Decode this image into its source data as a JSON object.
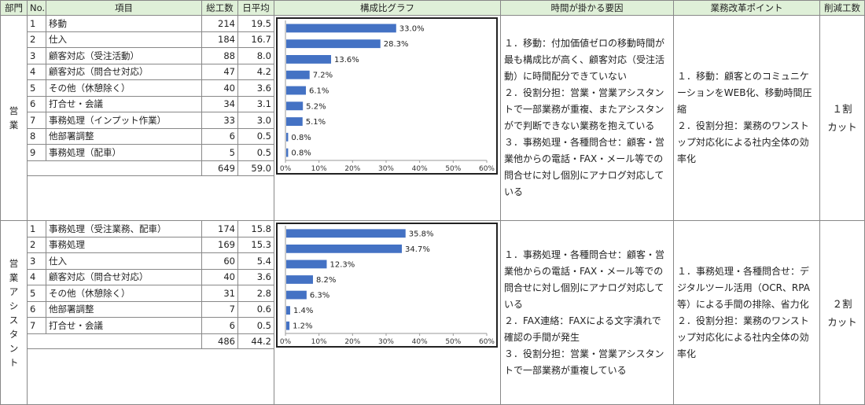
{
  "header": {
    "dept": "部門",
    "no": "No.",
    "item": "項目",
    "total": "総工数",
    "daily": "日平均",
    "graph": "構成比グラフ",
    "causes": "時間が掛かる要因",
    "improve": "業務改革ポイント",
    "cut": "削減工数"
  },
  "sections": [
    {
      "dept_chars": [
        "営",
        "業"
      ],
      "rows": [
        {
          "no": "1",
          "item": "移動",
          "total": "214",
          "daily": "19.5",
          "pct": 33.0,
          "pct_label": "33.0%"
        },
        {
          "no": "2",
          "item": "仕入",
          "total": "184",
          "daily": "16.7",
          "pct": 28.3,
          "pct_label": "28.3%"
        },
        {
          "no": "3",
          "item": "顧客対応（受注活動）",
          "total": "88",
          "daily": "8.0",
          "pct": 13.6,
          "pct_label": "13.6%"
        },
        {
          "no": "4",
          "item": "顧客対応（問合せ対応）",
          "total": "47",
          "daily": "4.2",
          "pct": 7.2,
          "pct_label": "7.2%"
        },
        {
          "no": "5",
          "item": "その他（休憩除く）",
          "total": "40",
          "daily": "3.6",
          "pct": 6.1,
          "pct_label": "6.1%"
        },
        {
          "no": "6",
          "item": "打合せ・会議",
          "total": "34",
          "daily": "3.1",
          "pct": 5.2,
          "pct_label": "5.2%"
        },
        {
          "no": "7",
          "item": "事務処理（インプット作業）",
          "total": "33",
          "daily": "3.0",
          "pct": 5.1,
          "pct_label": "5.1%"
        },
        {
          "no": "8",
          "item": "他部署調整",
          "total": "6",
          "daily": "0.5",
          "pct": 0.8,
          "pct_label": "0.8%"
        },
        {
          "no": "9",
          "item": "事務処理（配車）",
          "total": "5",
          "daily": "0.5",
          "pct": 0.8,
          "pct_label": "0.8%"
        }
      ],
      "sum_total": "649",
      "sum_daily": "59.0",
      "causes": "１．移動：付加価値ゼロの移動時間が最も構成比が高く、顧客対応（受注活動）に時間配分できていない\n２．役割分担：営業・営業アシスタントで一部業務が重複、またアシスタンがで判断できない業務を抱えている\n３．事務処理・各種問合せ：顧客・営業他からの電話・FAX・メール等での問合せに対し個別にアナログ対応している",
      "improve": "１．移動：顧客とのコミュニケーションをWEB化、移動時間圧縮\n２．役割分担：業務のワンストップ対応化による社内全体の効率化",
      "cut": "１割\nカット"
    },
    {
      "dept_chars": [
        "営",
        "業",
        "ア",
        "シ",
        "ス",
        "タ",
        "ン",
        "ト"
      ],
      "rows": [
        {
          "no": "1",
          "item": "事務処理（受注業務、配車）",
          "total": "174",
          "daily": "15.8",
          "pct": 35.8,
          "pct_label": "35.8%"
        },
        {
          "no": "2",
          "item": "事務処理",
          "total": "169",
          "daily": "15.3",
          "pct": 34.7,
          "pct_label": "34.7%"
        },
        {
          "no": "3",
          "item": "仕入",
          "total": "60",
          "daily": "5.4",
          "pct": 12.3,
          "pct_label": "12.3%"
        },
        {
          "no": "4",
          "item": "顧客対応（問合せ対応）",
          "total": "40",
          "daily": "3.6",
          "pct": 8.2,
          "pct_label": "8.2%"
        },
        {
          "no": "5",
          "item": "その他（休憩除く）",
          "total": "31",
          "daily": "2.8",
          "pct": 6.3,
          "pct_label": "6.3%"
        },
        {
          "no": "6",
          "item": "他部署調整",
          "total": "7",
          "daily": "0.6",
          "pct": 1.4,
          "pct_label": "1.4%"
        },
        {
          "no": "7",
          "item": "打合せ・会議",
          "total": "6",
          "daily": "0.5",
          "pct": 1.2,
          "pct_label": "1.2%"
        }
      ],
      "sum_total": "486",
      "sum_daily": "44.2",
      "causes": "１．事務処理・各種問合せ：顧客・営業他からの電話・FAX・メール等での問合せに対し個別にアナログ対応している\n２．FAX連絡：FAXによる文字潰れで確認の手間が発生\n３．役割分担：営業・営業アシスタントで一部業務が重複している",
      "improve": "１．事務処理・各種問合せ：デジタルツール活用（OCR、RPA等）による手間の排除、省力化\n２．役割分担：業務のワンストップ対応化による社内全体の効率化",
      "cut": "２割\nカット"
    }
  ],
  "chart_data": [
    {
      "type": "bar",
      "orientation": "horizontal",
      "categories": [
        "移動",
        "仕入",
        "顧客対応（受注活動）",
        "顧客対応（問合せ対応）",
        "その他（休憩除く）",
        "打合せ・会議",
        "事務処理（インプット作業）",
        "他部署調整",
        "事務処理（配車）"
      ],
      "values": [
        33.0,
        28.3,
        13.6,
        7.2,
        6.1,
        5.2,
        5.1,
        0.8,
        0.8
      ],
      "data_labels": [
        "33.0%",
        "28.3%",
        "13.6%",
        "7.2%",
        "6.1%",
        "5.2%",
        "5.1%",
        "0.8%",
        "0.8%"
      ],
      "x_ticks": [
        "0%",
        "10%",
        "20%",
        "30%",
        "40%",
        "50%",
        "60%"
      ],
      "xlim": [
        0,
        60
      ],
      "color": "#4472c4",
      "grid": false
    },
    {
      "type": "bar",
      "orientation": "horizontal",
      "categories": [
        "事務処理（受注業務、配車）",
        "事務処理",
        "仕入",
        "顧客対応（問合せ対応）",
        "その他（休憩除く）",
        "他部署調整",
        "打合せ・会議"
      ],
      "values": [
        35.8,
        34.7,
        12.3,
        8.2,
        6.3,
        1.4,
        1.2
      ],
      "data_labels": [
        "35.8%",
        "34.7%",
        "12.3%",
        "8.2%",
        "6.3%",
        "1.4%",
        "1.2%"
      ],
      "x_ticks": [
        "0%",
        "10%",
        "20%",
        "30%",
        "40%",
        "50%",
        "60%"
      ],
      "xlim": [
        0,
        60
      ],
      "color": "#4472c4",
      "grid": false
    }
  ]
}
